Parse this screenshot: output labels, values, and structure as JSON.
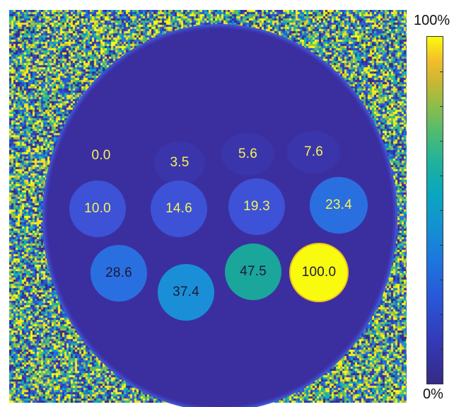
{
  "colorbar": {
    "max_label": "100%",
    "min_label": "0%"
  },
  "vials": [
    {
      "label": "0.0",
      "fraction": 0.0
    },
    {
      "label": "3.5",
      "fraction": 0.035
    },
    {
      "label": "5.6",
      "fraction": 0.056
    },
    {
      "label": "7.6",
      "fraction": 0.076
    },
    {
      "label": "10.0",
      "fraction": 0.1
    },
    {
      "label": "14.6",
      "fraction": 0.146
    },
    {
      "label": "19.3",
      "fraction": 0.193
    },
    {
      "label": "23.4",
      "fraction": 0.234
    },
    {
      "label": "28.6",
      "fraction": 0.286
    },
    {
      "label": "37.4",
      "fraction": 0.374
    },
    {
      "label": "47.5",
      "fraction": 0.475
    },
    {
      "label": "100.0",
      "fraction": 1.0
    }
  ],
  "colors": {
    "background_dark": "#3b2fa0",
    "label_light": "#f5f25a",
    "label_dark": "#1a1a3a"
  }
}
